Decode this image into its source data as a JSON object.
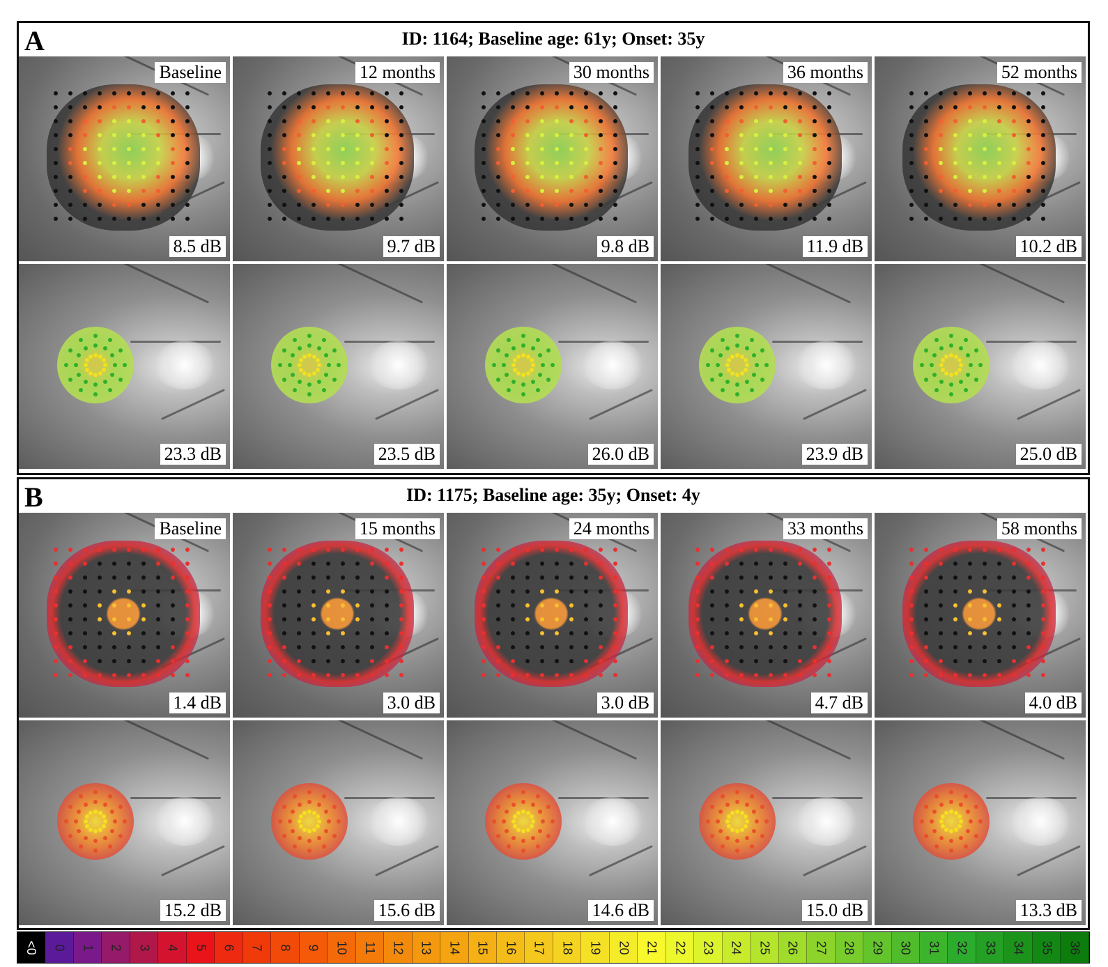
{
  "panels": [
    {
      "letter": "A",
      "title": "ID: 1164; Baseline age: 61y; Onset: 35y",
      "time_labels": [
        "Baseline",
        "12 months",
        "30 months",
        "36 months",
        "52 months"
      ],
      "rows": [
        {
          "kind": "large",
          "values": [
            "8.5 dB",
            "9.7 dB",
            "9.8 dB",
            "11.9 dB",
            "10.2 dB"
          ]
        },
        {
          "kind": "small",
          "values": [
            "23.3 dB",
            "23.5 dB",
            "26.0 dB",
            "23.9 dB",
            "25.0 dB"
          ]
        }
      ]
    },
    {
      "letter": "B",
      "title": "ID: 1175; Baseline age: 35y; Onset: 4y",
      "time_labels": [
        "Baseline",
        "15 months",
        "24 months",
        "33 months",
        "58 months"
      ],
      "rows": [
        {
          "kind": "large",
          "values": [
            "1.4 dB",
            "3.0 dB",
            "3.0 dB",
            "4.7 dB",
            "4.0 dB"
          ]
        },
        {
          "kind": "small",
          "values": [
            "15.2 dB",
            "15.6 dB",
            "14.6 dB",
            "15.0 dB",
            "13.3 dB"
          ]
        }
      ]
    }
  ],
  "scale": {
    "labels": [
      "<0",
      "0",
      "1",
      "2",
      "3",
      "4",
      "5",
      "6",
      "7",
      "8",
      "9",
      "10",
      "11",
      "12",
      "13",
      "14",
      "15",
      "16",
      "17",
      "18",
      "19",
      "20",
      "21",
      "22",
      "23",
      "24",
      "25",
      "26",
      "27",
      "28",
      "29",
      "30",
      "31",
      "32",
      "33",
      "34",
      "35",
      "36"
    ],
    "colors": [
      "#000000",
      "#5a1a9a",
      "#7a1a8a",
      "#951a6a",
      "#b0184a",
      "#d4142e",
      "#e8141a",
      "#ee2a10",
      "#f03a0a",
      "#f24a08",
      "#f45a08",
      "#f46a08",
      "#f47a0a",
      "#f48a0c",
      "#f4980e",
      "#f4a410",
      "#f4b014",
      "#f4bc18",
      "#f4c81c",
      "#f4d420",
      "#f4e024",
      "#f4ec28",
      "#f8f82c",
      "#ecf82c",
      "#dcf42c",
      "#c8ec2c",
      "#b4e42c",
      "#a0dc2c",
      "#8cd42c",
      "#78cc2c",
      "#64c42c",
      "#50bc2c",
      "#3cb42c",
      "#2cac2c",
      "#24a024",
      "#1c941c",
      "#148814",
      "#0c7c0c"
    ]
  }
}
